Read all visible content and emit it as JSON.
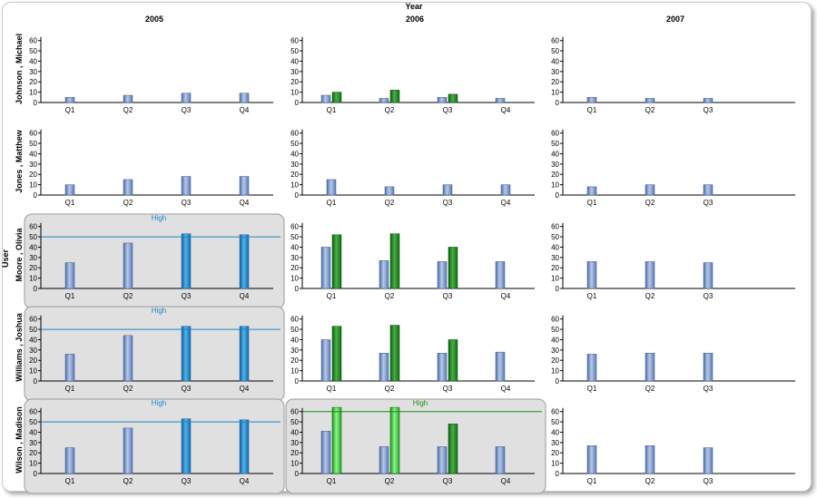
{
  "chart_data": {
    "type": "bar",
    "column_axis_title": "Year",
    "row_axis_title": "User",
    "years": [
      "2005",
      "2006",
      "2007"
    ],
    "users": [
      "Johnson , Michael",
      "Jones , Matthew",
      "Moore , Olivia",
      "Williams , Joshua",
      "Wilson , Madison"
    ],
    "yticks": [
      0,
      10,
      20,
      30,
      40,
      50,
      60
    ],
    "ylim": [
      0,
      65
    ],
    "threshold_label": "High",
    "colors": {
      "series_a": "#7b96c8",
      "series_b": "#1f8a1f",
      "highlight_blue": "#1b86c6",
      "highlight_green": "#33cc33",
      "panel_bg": "#e0e0e0"
    },
    "panels": [
      [
        {
          "categories": [
            "Q1",
            "Q2",
            "Q3",
            "Q4"
          ],
          "series_a": [
            5,
            7,
            9,
            9
          ],
          "series_b": [
            null,
            null,
            null,
            null
          ],
          "threshold": null
        },
        {
          "categories": [
            "Q1",
            "Q2",
            "Q3",
            "Q4"
          ],
          "series_a": [
            7,
            4,
            5,
            4
          ],
          "series_b": [
            10,
            12,
            8,
            null
          ],
          "threshold": null
        },
        {
          "categories": [
            "Q1",
            "Q2",
            "Q3"
          ],
          "series_a": [
            5,
            4,
            4
          ],
          "series_b": [
            null,
            null,
            null
          ],
          "threshold": null
        }
      ],
      [
        {
          "categories": [
            "Q1",
            "Q2",
            "Q3",
            "Q4"
          ],
          "series_a": [
            10,
            15,
            18,
            18
          ],
          "series_b": [
            null,
            null,
            null,
            null
          ],
          "threshold": null
        },
        {
          "categories": [
            "Q1",
            "Q2",
            "Q3",
            "Q4"
          ],
          "series_a": [
            15,
            8,
            10,
            10
          ],
          "series_b": [
            null,
            null,
            null,
            null
          ],
          "threshold": null
        },
        {
          "categories": [
            "Q1",
            "Q2",
            "Q3"
          ],
          "series_a": [
            8,
            10,
            10
          ],
          "series_b": [
            null,
            null,
            null
          ],
          "threshold": null
        }
      ],
      [
        {
          "categories": [
            "Q1",
            "Q2",
            "Q3",
            "Q4"
          ],
          "series_a": [
            25,
            44,
            53,
            52
          ],
          "series_b": [
            null,
            null,
            null,
            null
          ],
          "threshold": 50,
          "highlight": [
            false,
            false,
            true,
            true
          ]
        },
        {
          "categories": [
            "Q1",
            "Q2",
            "Q3",
            "Q4"
          ],
          "series_a": [
            40,
            27,
            26,
            26
          ],
          "series_b": [
            52,
            53,
            40,
            null
          ],
          "threshold": null
        },
        {
          "categories": [
            "Q1",
            "Q2",
            "Q3"
          ],
          "series_a": [
            26,
            26,
            25
          ],
          "series_b": [
            null,
            null,
            null
          ],
          "threshold": null
        }
      ],
      [
        {
          "categories": [
            "Q1",
            "Q2",
            "Q3",
            "Q4"
          ],
          "series_a": [
            26,
            44,
            53,
            53
          ],
          "series_b": [
            null,
            null,
            null,
            null
          ],
          "threshold": 50,
          "highlight": [
            false,
            false,
            true,
            true
          ]
        },
        {
          "categories": [
            "Q1",
            "Q2",
            "Q3",
            "Q4"
          ],
          "series_a": [
            40,
            27,
            27,
            28
          ],
          "series_b": [
            53,
            54,
            40,
            null
          ],
          "threshold": null
        },
        {
          "categories": [
            "Q1",
            "Q2",
            "Q3"
          ],
          "series_a": [
            26,
            27,
            27
          ],
          "series_b": [
            null,
            null,
            null
          ],
          "threshold": null
        }
      ],
      [
        {
          "categories": [
            "Q1",
            "Q2",
            "Q3",
            "Q4"
          ],
          "series_a": [
            25,
            44,
            53,
            52
          ],
          "series_b": [
            null,
            null,
            null,
            null
          ],
          "threshold": 50,
          "highlight": [
            false,
            false,
            true,
            true
          ]
        },
        {
          "categories": [
            "Q1",
            "Q2",
            "Q3",
            "Q4"
          ],
          "series_a": [
            41,
            26,
            26,
            26
          ],
          "series_b": [
            64,
            64,
            48,
            null
          ],
          "threshold": 60,
          "threshold_color": "green",
          "highlight": [
            true,
            true,
            false,
            false
          ]
        },
        {
          "categories": [
            "Q1",
            "Q2",
            "Q3"
          ],
          "series_a": [
            27,
            27,
            25
          ],
          "series_b": [
            null,
            null,
            null
          ],
          "threshold": null
        }
      ]
    ]
  }
}
